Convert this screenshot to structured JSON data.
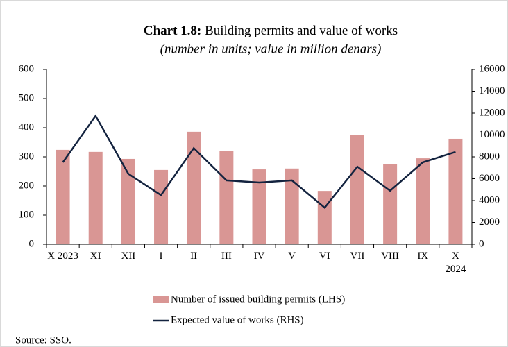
{
  "chart_data": {
    "type": "bar_line",
    "title_label": "Chart 1.8:",
    "title": "Building permits and value of works",
    "subtitle": "(number in units; value in million denars)",
    "categories": [
      "X 2023",
      "XI",
      "XII",
      "I",
      "II",
      "III",
      "IV",
      "V",
      "VI",
      "VII",
      "VIII",
      "IX",
      "X 2024"
    ],
    "series": [
      {
        "name": "Number of issued building permits (LHS)",
        "type": "bar",
        "color": "#d99694",
        "values": [
          324,
          317,
          293,
          255,
          386,
          321,
          257,
          260,
          183,
          374,
          274,
          295,
          362
        ]
      },
      {
        "name": "Expected value of works (RHS)",
        "type": "line",
        "axis": "y2",
        "color": "#13233f",
        "values": [
          7500,
          11750,
          6450,
          4500,
          8800,
          5850,
          5650,
          5850,
          3350,
          7100,
          4900,
          7500,
          8450
        ]
      }
    ],
    "ylim": [
      0,
      600
    ],
    "yticks": [
      0,
      100,
      200,
      300,
      400,
      500,
      600
    ],
    "y2lim": [
      0,
      16000
    ],
    "y2ticks": [
      0,
      2000,
      4000,
      6000,
      8000,
      10000,
      12000,
      14000,
      16000
    ],
    "source": "Source: SSO."
  }
}
